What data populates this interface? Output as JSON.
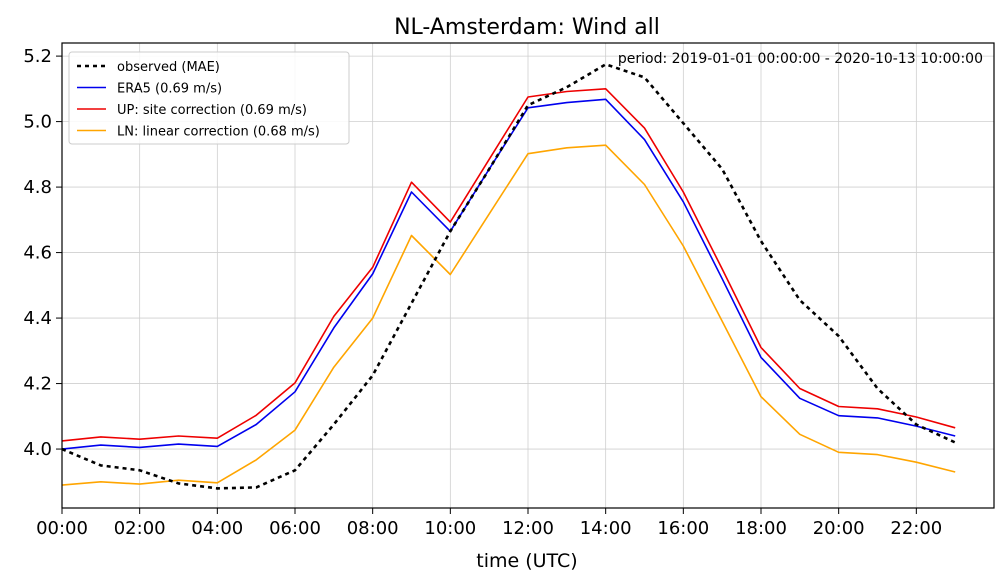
{
  "chart_data": {
    "type": "line",
    "title": "NL-Amsterdam: Wind all",
    "annotation": "period: 2019-01-01 00:00:00 - 2020-10-13 10:00:00",
    "xlabel": "time (UTC)",
    "ylabel": "",
    "xlim": [
      0,
      24
    ],
    "ylim": [
      3.82,
      5.24
    ],
    "grid": true,
    "legend_position": "top-left",
    "x_ticks": [
      0,
      2,
      4,
      6,
      8,
      10,
      12,
      14,
      16,
      18,
      20,
      22
    ],
    "x_tick_labels": [
      "00:00",
      "02:00",
      "04:00",
      "06:00",
      "08:00",
      "10:00",
      "12:00",
      "14:00",
      "16:00",
      "18:00",
      "20:00",
      "22:00"
    ],
    "y_ticks": [
      4.0,
      4.2,
      4.4,
      4.6,
      4.8,
      5.0,
      5.2
    ],
    "y_tick_labels": [
      "4.0",
      "4.2",
      "4.4",
      "4.6",
      "4.8",
      "5.0",
      "5.2"
    ],
    "x": [
      0,
      1,
      2,
      3,
      4,
      5,
      6,
      7,
      8,
      9,
      10,
      11,
      12,
      13,
      14,
      15,
      16,
      17,
      18,
      19,
      20,
      21,
      22,
      23
    ],
    "series": [
      {
        "name": "observed (MAE)",
        "color": "#000000",
        "dashed": true,
        "values": [
          4.0,
          3.95,
          3.935,
          3.895,
          3.88,
          3.883,
          3.935,
          4.075,
          4.225,
          4.445,
          4.665,
          4.855,
          5.05,
          5.105,
          5.175,
          5.135,
          4.995,
          4.855,
          4.635,
          4.455,
          4.345,
          4.185,
          4.075,
          4.02
        ]
      },
      {
        "name": "ERA5 (0.69 m/s)",
        "color": "#0000ee",
        "dashed": false,
        "values": [
          4.0,
          4.012,
          4.005,
          4.015,
          4.008,
          4.075,
          4.175,
          4.37,
          4.535,
          4.785,
          4.665,
          4.855,
          5.042,
          5.058,
          5.068,
          4.945,
          4.755,
          4.52,
          4.28,
          4.155,
          4.102,
          4.095,
          4.07,
          4.04
        ]
      },
      {
        "name": "UP: site correction (0.69 m/s)",
        "color": "#ee0000",
        "dashed": false,
        "values": [
          4.025,
          4.037,
          4.03,
          4.04,
          4.033,
          4.103,
          4.202,
          4.405,
          4.555,
          4.815,
          4.693,
          4.885,
          5.075,
          5.092,
          5.1,
          4.98,
          4.785,
          4.55,
          4.31,
          4.185,
          4.13,
          4.123,
          4.098,
          4.065
        ]
      },
      {
        "name": "LN: linear correction (0.68 m/s)",
        "color": "#ffa500",
        "dashed": false,
        "values": [
          3.89,
          3.9,
          3.893,
          3.905,
          3.897,
          3.967,
          4.058,
          4.25,
          4.4,
          4.652,
          4.533,
          4.718,
          4.902,
          4.92,
          4.928,
          4.808,
          4.62,
          4.39,
          4.16,
          4.045,
          3.99,
          3.983,
          3.96,
          3.93
        ]
      }
    ]
  }
}
